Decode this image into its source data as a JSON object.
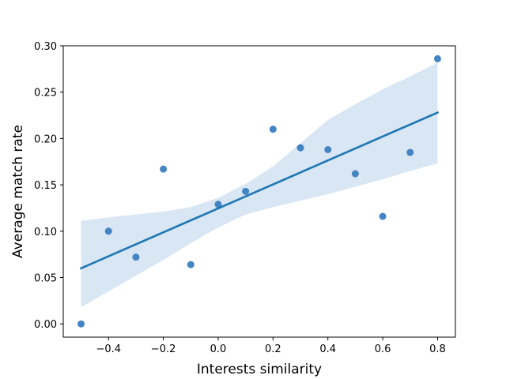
{
  "chart_data": {
    "type": "scatter",
    "title": "",
    "xlabel": "Interests similarity",
    "ylabel": "Average match rate",
    "xlim": [
      -0.565,
      0.865
    ],
    "ylim": [
      -0.0143,
      0.3
    ],
    "xticks": [
      -0.4,
      -0.2,
      0.0,
      0.2,
      0.4,
      0.6,
      0.8
    ],
    "xtick_labels": [
      "−0.4",
      "−0.2",
      "0.0",
      "0.2",
      "0.4",
      "0.6",
      "0.8"
    ],
    "yticks": [
      0.0,
      0.05,
      0.1,
      0.15,
      0.2,
      0.25,
      0.3
    ],
    "ytick_labels": [
      "0.00",
      "0.05",
      "0.10",
      "0.15",
      "0.20",
      "0.25",
      "0.30"
    ],
    "grid": false,
    "colors": {
      "points": "#3b7ec0",
      "line": "#1f77b4",
      "band": "#c9dcee"
    },
    "points": [
      {
        "x": -0.5,
        "y": 0.0
      },
      {
        "x": -0.4,
        "y": 0.1
      },
      {
        "x": -0.3,
        "y": 0.072
      },
      {
        "x": -0.2,
        "y": 0.167
      },
      {
        "x": -0.1,
        "y": 0.064
      },
      {
        "x": 0.0,
        "y": 0.129
      },
      {
        "x": 0.1,
        "y": 0.143
      },
      {
        "x": 0.2,
        "y": 0.21
      },
      {
        "x": 0.3,
        "y": 0.19
      },
      {
        "x": 0.4,
        "y": 0.188
      },
      {
        "x": 0.5,
        "y": 0.162
      },
      {
        "x": 0.6,
        "y": 0.116
      },
      {
        "x": 0.7,
        "y": 0.185
      },
      {
        "x": 0.8,
        "y": 0.286
      }
    ],
    "regression_line": [
      {
        "x": -0.5,
        "y": 0.06
      },
      {
        "x": 0.8,
        "y": 0.228
      }
    ],
    "confidence_band": {
      "upper": [
        {
          "x": -0.5,
          "y": 0.111
        },
        {
          "x": -0.4,
          "y": 0.115
        },
        {
          "x": -0.3,
          "y": 0.118
        },
        {
          "x": -0.2,
          "y": 0.121
        },
        {
          "x": -0.1,
          "y": 0.126
        },
        {
          "x": 0.0,
          "y": 0.136
        },
        {
          "x": 0.1,
          "y": 0.151
        },
        {
          "x": 0.2,
          "y": 0.17
        },
        {
          "x": 0.3,
          "y": 0.195
        },
        {
          "x": 0.4,
          "y": 0.22
        },
        {
          "x": 0.5,
          "y": 0.237
        },
        {
          "x": 0.6,
          "y": 0.253
        },
        {
          "x": 0.7,
          "y": 0.267
        },
        {
          "x": 0.8,
          "y": 0.282
        }
      ],
      "lower": [
        {
          "x": -0.5,
          "y": 0.018
        },
        {
          "x": -0.4,
          "y": 0.035
        },
        {
          "x": -0.3,
          "y": 0.052
        },
        {
          "x": -0.2,
          "y": 0.069
        },
        {
          "x": -0.1,
          "y": 0.087
        },
        {
          "x": 0.0,
          "y": 0.104
        },
        {
          "x": 0.1,
          "y": 0.118
        },
        {
          "x": 0.2,
          "y": 0.126
        },
        {
          "x": 0.3,
          "y": 0.133
        },
        {
          "x": 0.4,
          "y": 0.14
        },
        {
          "x": 0.5,
          "y": 0.148
        },
        {
          "x": 0.6,
          "y": 0.156
        },
        {
          "x": 0.7,
          "y": 0.165
        },
        {
          "x": 0.8,
          "y": 0.173
        }
      ]
    }
  }
}
